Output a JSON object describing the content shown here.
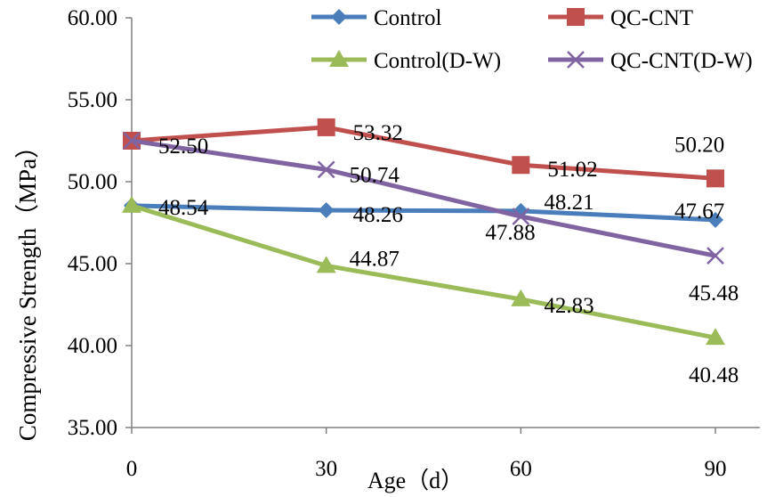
{
  "chart_data": {
    "type": "line",
    "xlabel": "Age（d）",
    "ylabel": "Compressive   Strength（MPa）",
    "x": [
      0,
      30,
      60,
      90
    ],
    "xticks": [
      "0",
      "30",
      "60",
      "90"
    ],
    "ylim": [
      35,
      60
    ],
    "yticks": [
      "35.00",
      "40.00",
      "45.00",
      "50.00",
      "55.00",
      "60.00"
    ],
    "grid": false,
    "legend_position": "top",
    "series": [
      {
        "name": "Control",
        "values": [
          48.54,
          48.26,
          48.21,
          47.67
        ],
        "labels": [
          "48.54",
          "48.26",
          "48.21",
          "47.67"
        ],
        "color": "#4a7ebb",
        "marker": "diamond"
      },
      {
        "name": "QC-CNT",
        "values": [
          52.5,
          53.32,
          51.02,
          50.2
        ],
        "labels": [
          "52.50",
          "53.32",
          "51.02",
          "50.20"
        ],
        "color": "#c0504d",
        "marker": "square"
      },
      {
        "name": "Control(D-W)",
        "values": [
          48.54,
          44.87,
          42.83,
          40.48
        ],
        "labels": [
          "",
          "44.87",
          "42.83",
          "40.48"
        ],
        "color": "#9bbb59",
        "marker": "triangle"
      },
      {
        "name": "QC-CNT(D-W)",
        "values": [
          52.5,
          50.74,
          47.88,
          45.48
        ],
        "labels": [
          "",
          "50.74",
          "47.88",
          "45.48"
        ],
        "color": "#8064a2",
        "marker": "x"
      }
    ]
  }
}
